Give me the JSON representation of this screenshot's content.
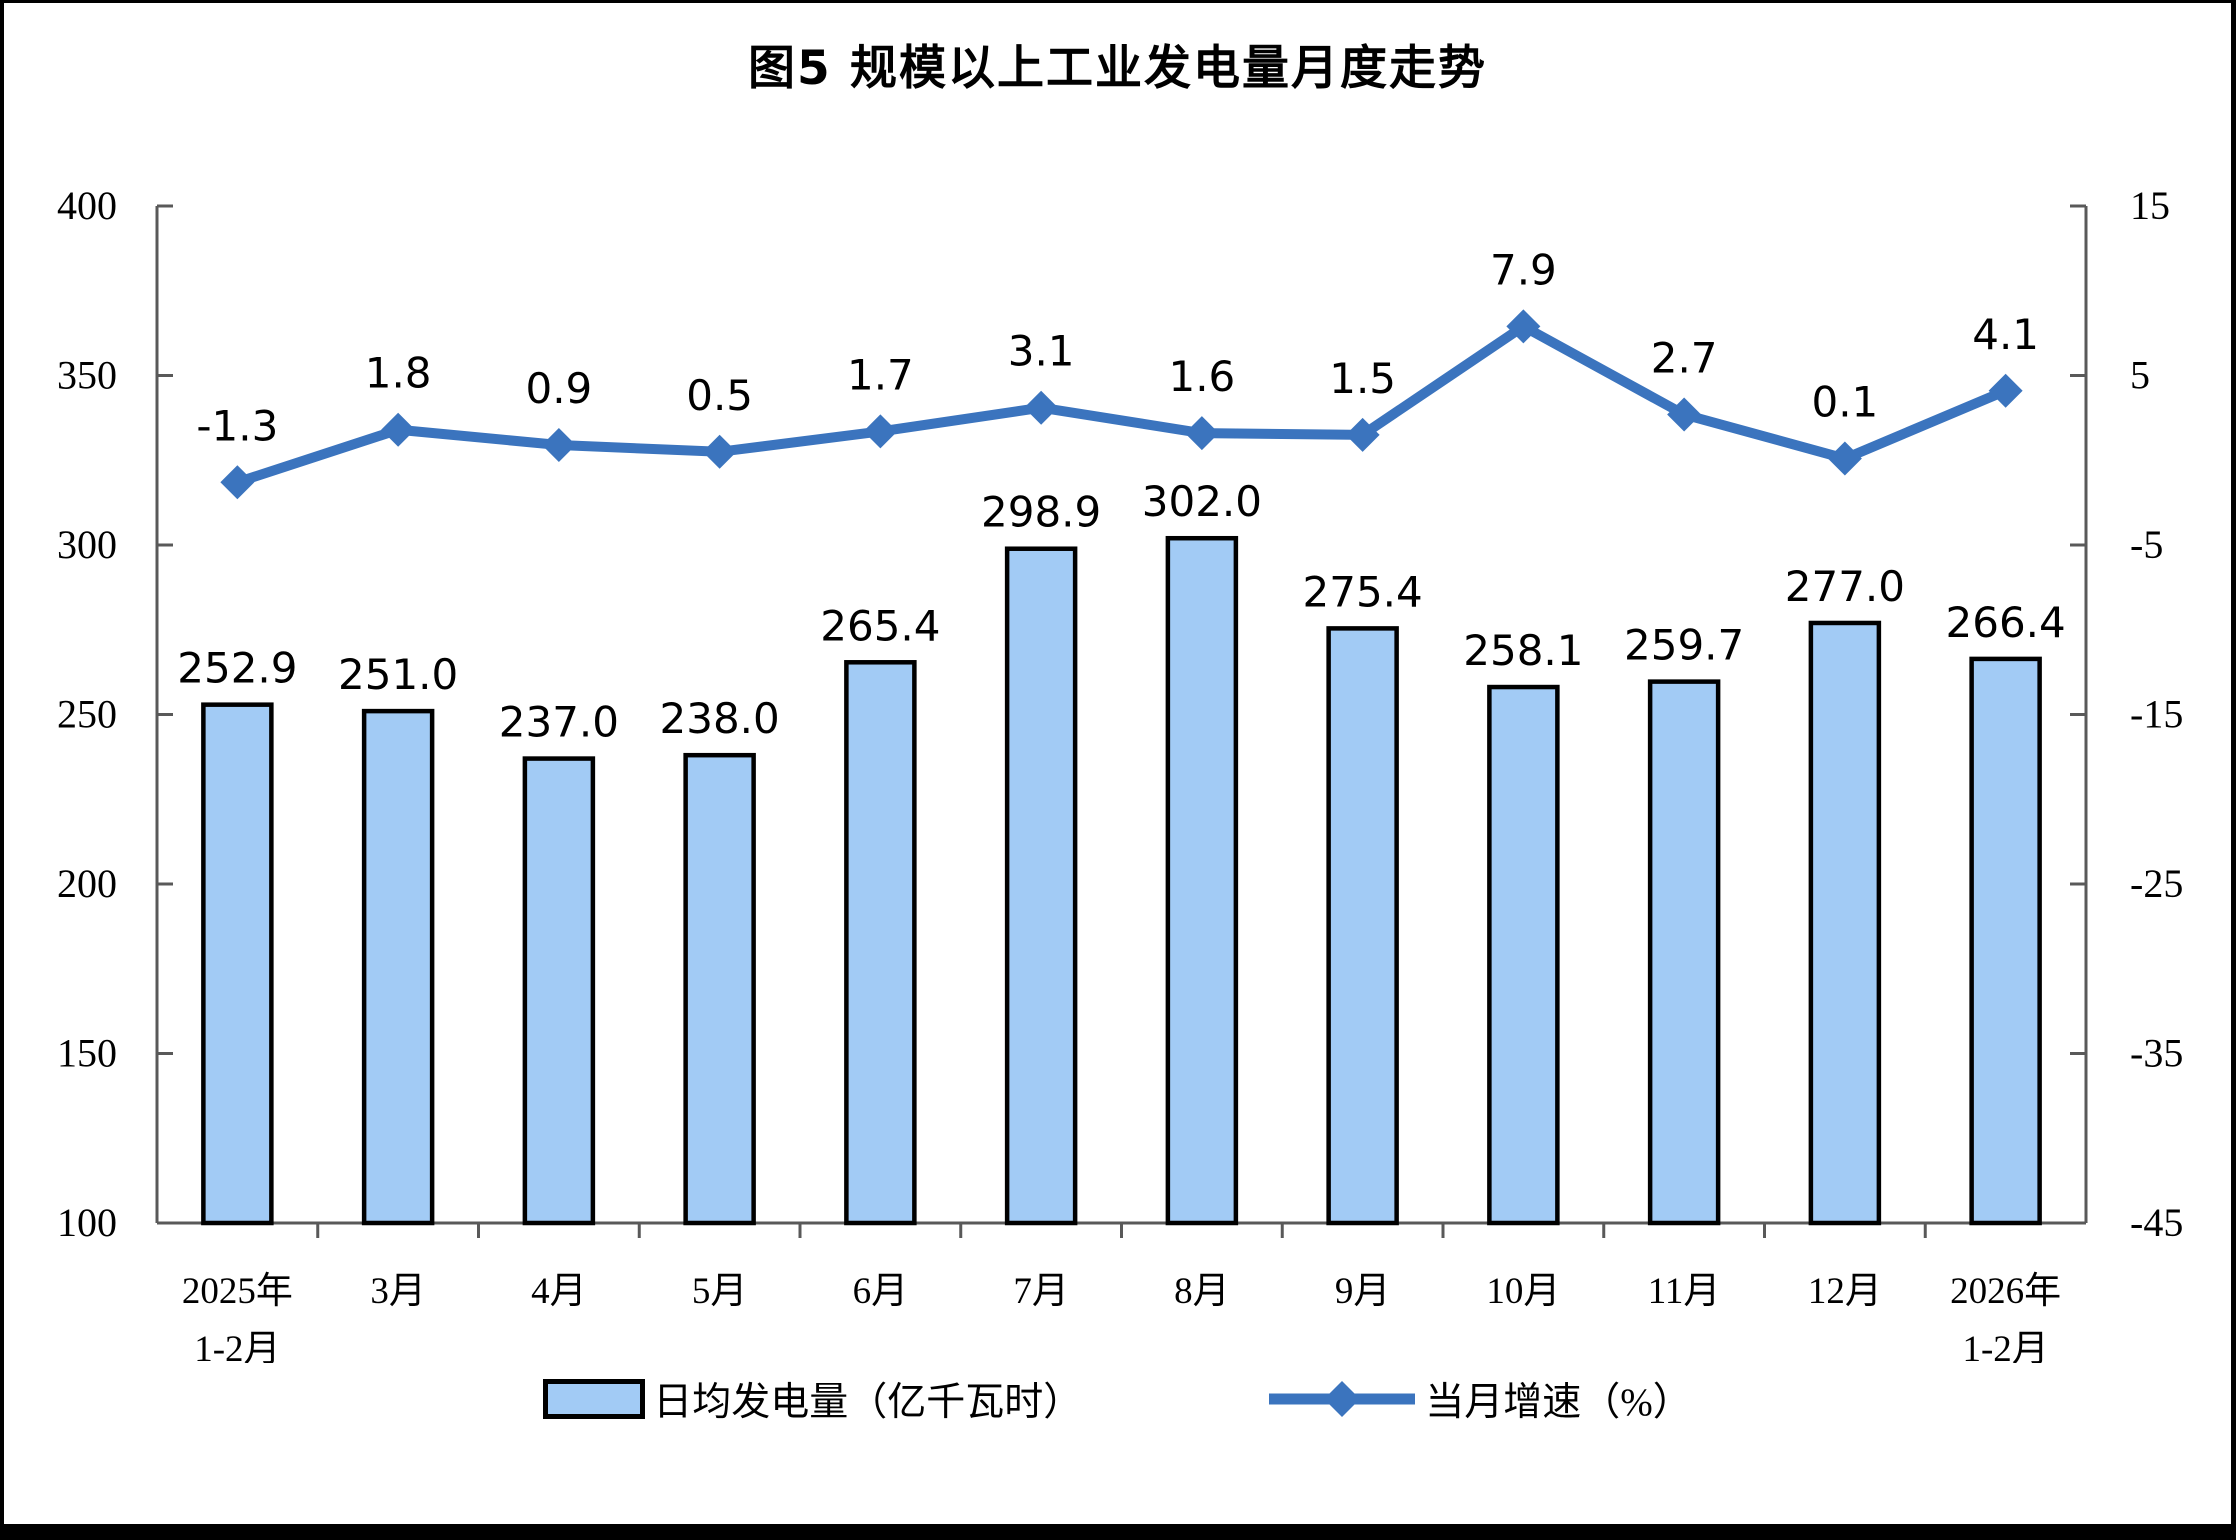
{
  "chart_data": {
    "type": "combo",
    "title": "图5 规模以上工业发电量月度走势",
    "categories": [
      {
        "line1": "2025年",
        "line2": "1-2月"
      },
      {
        "line1": "3月",
        "line2": ""
      },
      {
        "line1": "4月",
        "line2": ""
      },
      {
        "line1": "5月",
        "line2": ""
      },
      {
        "line1": "6月",
        "line2": ""
      },
      {
        "line1": "7月",
        "line2": ""
      },
      {
        "line1": "8月",
        "line2": ""
      },
      {
        "line1": "9月",
        "line2": ""
      },
      {
        "line1": "10月",
        "line2": ""
      },
      {
        "line1": "11月",
        "line2": ""
      },
      {
        "line1": "12月",
        "line2": ""
      },
      {
        "line1": "2026年",
        "line2": "1-2月"
      }
    ],
    "series": [
      {
        "name": "日均发电量（亿千瓦时）",
        "type": "bar",
        "axis": "left",
        "color": "#A2CBF5",
        "border_color": "#000000",
        "values": [
          252.9,
          251.0,
          237.0,
          238.0,
          265.4,
          298.9,
          302.0,
          275.4,
          258.1,
          259.7,
          277.0,
          266.4
        ]
      },
      {
        "name": "当月增速（%）",
        "type": "line",
        "axis": "right",
        "color": "#3B74BE",
        "values": [
          -1.3,
          1.8,
          0.9,
          0.5,
          1.7,
          3.1,
          1.6,
          1.5,
          7.9,
          2.7,
          0.1,
          4.1
        ]
      }
    ],
    "left_axis": {
      "min": 100,
      "max": 400,
      "ticks": [
        400,
        350,
        300,
        250,
        200,
        150,
        100
      ]
    },
    "right_axis": {
      "min": -45,
      "max": 15,
      "ticks": [
        15,
        5,
        -5,
        -15,
        -25,
        -35,
        -45
      ]
    },
    "legend_position": "bottom",
    "grid": "off",
    "axis_line_color": "#595959",
    "text_color": "#000000"
  }
}
